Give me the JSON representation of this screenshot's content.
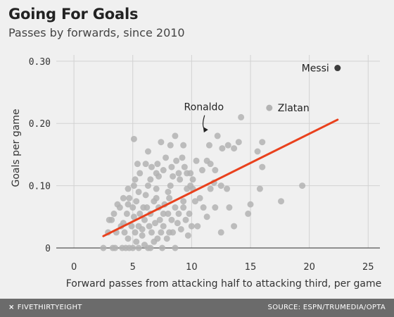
{
  "chart_data": {
    "type": "scatter",
    "title": "Going For Goals",
    "subtitle": "Passes by forwards, since 2010",
    "xlabel": "Forward passes from attacking half to attacking third, per game",
    "ylabel": "Goals per game",
    "xlim": [
      -1.5,
      26
    ],
    "ylim": [
      0,
      0.31
    ],
    "x_ticks": [
      0,
      5,
      10,
      15,
      20,
      25
    ],
    "x_tick_labels": [
      "0",
      "5",
      "10",
      "15",
      "20",
      "25"
    ],
    "y_ticks": [
      0,
      0.1,
      0.2,
      0.3
    ],
    "y_tick_labels": [
      "0",
      "0.10",
      "0.20",
      "0.30"
    ],
    "grid": true,
    "colors": {
      "points": "#b3b3b3",
      "highlight": "#3c3c3c",
      "trend": "#e9411d",
      "annotation": "#222222"
    },
    "points": [
      [
        2.5,
        0
      ],
      [
        3.3,
        0
      ],
      [
        3.5,
        0
      ],
      [
        4.1,
        0
      ],
      [
        4.7,
        0
      ],
      [
        5.0,
        0
      ],
      [
        5.5,
        0
      ],
      [
        6.3,
        0
      ],
      [
        6.5,
        0
      ],
      [
        7.5,
        0
      ],
      [
        8.6,
        0
      ],
      [
        3.2,
        0.045
      ],
      [
        4.2,
        0.04
      ],
      [
        3.7,
        0.07
      ],
      [
        4.5,
        0.055
      ],
      [
        4.0,
        0.035
      ],
      [
        3.6,
        0.025
      ],
      [
        4.3,
        0.025
      ],
      [
        4.6,
        0.015
      ],
      [
        4.9,
        0.035
      ],
      [
        5.2,
        0.025
      ],
      [
        5.5,
        0.035
      ],
      [
        5.1,
        0.05
      ],
      [
        5.6,
        0.055
      ],
      [
        6.0,
        0.045
      ],
      [
        6.4,
        0.035
      ],
      [
        5.8,
        0.02
      ],
      [
        6.6,
        0.025
      ],
      [
        7.1,
        0.015
      ],
      [
        7.4,
        0.025
      ],
      [
        6.9,
        0.04
      ],
      [
        7.6,
        0.035
      ],
      [
        7.9,
        0.015
      ],
      [
        8.1,
        0.025
      ],
      [
        8.3,
        0.045
      ],
      [
        8.8,
        0.04
      ],
      [
        8.0,
        0.055
      ],
      [
        6.2,
        0.065
      ],
      [
        5.9,
        0.065
      ],
      [
        5.0,
        0.065
      ],
      [
        4.6,
        0.07
      ],
      [
        5.3,
        0.075
      ],
      [
        5.5,
        0.09
      ],
      [
        6.1,
        0.085
      ],
      [
        6.8,
        0.075
      ],
      [
        7.2,
        0.065
      ],
      [
        7.7,
        0.07
      ],
      [
        8.1,
        0.08
      ],
      [
        8.6,
        0.065
      ],
      [
        7.0,
        0.095
      ],
      [
        6.3,
        0.1
      ],
      [
        5.1,
        0.1
      ],
      [
        5.6,
        0.12
      ],
      [
        6.5,
        0.11
      ],
      [
        7.2,
        0.115
      ],
      [
        7.6,
        0.125
      ],
      [
        8.2,
        0.1
      ],
      [
        8.4,
        0.115
      ],
      [
        9.0,
        0.11
      ],
      [
        8.0,
        0.09
      ],
      [
        9.3,
        0.075
      ],
      [
        9.6,
        0.095
      ],
      [
        7.6,
        0.055
      ],
      [
        9.3,
        0.065
      ],
      [
        8.9,
        0.055
      ],
      [
        6.1,
        0.135
      ],
      [
        5.4,
        0.135
      ],
      [
        6.6,
        0.13
      ],
      [
        7.1,
        0.135
      ],
      [
        7.8,
        0.145
      ],
      [
        8.3,
        0.13
      ],
      [
        8.7,
        0.14
      ],
      [
        9.2,
        0.145
      ],
      [
        8.9,
        0.12
      ],
      [
        9.4,
        0.13
      ],
      [
        9.9,
        0.12
      ],
      [
        10.1,
        0.11
      ],
      [
        10.9,
        0.125
      ],
      [
        11.3,
        0.14
      ],
      [
        11.6,
        0.135
      ],
      [
        12.0,
        0.125
      ],
      [
        12.6,
        0.16
      ],
      [
        13.1,
        0.165
      ],
      [
        13.6,
        0.16
      ],
      [
        11.5,
        0.165
      ],
      [
        7.4,
        0.17
      ],
      [
        8.6,
        0.18
      ],
      [
        9.3,
        0.165
      ],
      [
        10.1,
        0.095
      ],
      [
        11.6,
        0.095
      ],
      [
        12.5,
        0.1
      ],
      [
        13.0,
        0.095
      ],
      [
        13.2,
        0.065
      ],
      [
        12.0,
        0.065
      ],
      [
        11.0,
        0.065
      ],
      [
        10.3,
        0.075
      ],
      [
        9.8,
        0.055
      ],
      [
        9.5,
        0.045
      ],
      [
        10.0,
        0.035
      ],
      [
        10.5,
        0.035
      ],
      [
        11.3,
        0.05
      ],
      [
        12.5,
        0.025
      ],
      [
        13.6,
        0.035
      ],
      [
        14.8,
        0.055
      ],
      [
        15.0,
        0.07
      ],
      [
        15.8,
        0.095
      ],
      [
        16.0,
        0.13
      ],
      [
        16.0,
        0.17
      ],
      [
        15.6,
        0.155
      ],
      [
        14.2,
        0.21
      ],
      [
        17.6,
        0.075
      ],
      [
        19.4,
        0.1
      ],
      [
        5.1,
        0.175
      ],
      [
        4.6,
        0.095
      ],
      [
        4.2,
        0.08
      ],
      [
        3.9,
        0.065
      ],
      [
        3.4,
        0.055
      ],
      [
        3.0,
        0.045
      ],
      [
        2.9,
        0.025
      ],
      [
        5.3,
        0.01
      ],
      [
        6.8,
        0.01
      ],
      [
        7.3,
        0.045
      ],
      [
        8.4,
        0.025
      ],
      [
        9.1,
        0.03
      ],
      [
        9.7,
        0.02
      ],
      [
        6.0,
        0.005
      ],
      [
        4.4,
        0.0
      ],
      [
        5.8,
        0.03
      ],
      [
        6.5,
        0.055
      ],
      [
        7.0,
        0.08
      ],
      [
        5.2,
        0.11
      ],
      [
        9.6,
        0.12
      ],
      [
        10.4,
        0.14
      ],
      [
        8.2,
        0.165
      ],
      [
        7.0,
        0.12
      ],
      [
        9.9,
        0.1
      ],
      [
        10.7,
        0.08
      ],
      [
        12.2,
        0.18
      ],
      [
        14.0,
        0.17
      ],
      [
        11.9,
        0.105
      ],
      [
        6.3,
        0.155
      ],
      [
        4.7,
        0.08
      ]
    ],
    "highlights": [
      {
        "name": "Messi",
        "x": 22.4,
        "y": 0.289
      },
      {
        "name": "Zlatan",
        "x": 16.6,
        "y": 0.225
      }
    ],
    "annotations": [
      {
        "text": "Ronaldo",
        "x": 11.4,
        "y": 0.19
      }
    ],
    "trend_line": {
      "x": [
        2.5,
        22.4
      ],
      "y": [
        0.019,
        0.206
      ]
    }
  },
  "footer": {
    "brand_icon": "⨯",
    "brand": "FIVETHIRTYEIGHT",
    "source": "SOURCE: ESPN/TRUMEDIA/OPTA"
  }
}
